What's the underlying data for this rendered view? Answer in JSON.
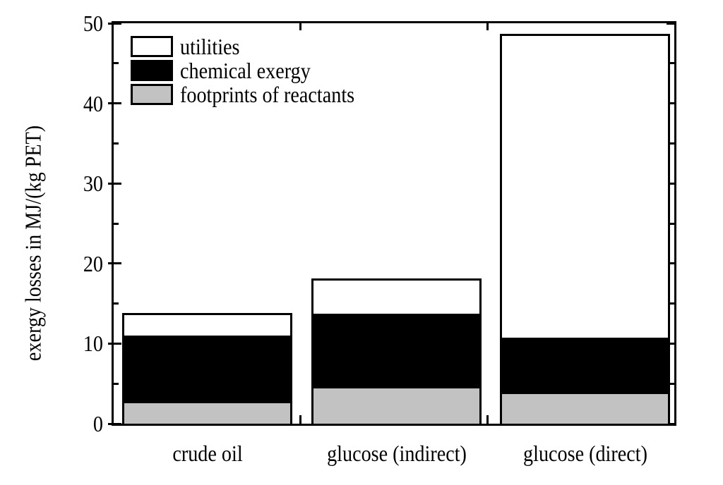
{
  "chart_data": {
    "type": "bar",
    "stacked": true,
    "title": "",
    "xlabel": "",
    "ylabel": "exergy losses in MJ/(kg PET)",
    "ylim": [
      0,
      50
    ],
    "ytick_major": [
      0,
      10,
      20,
      30,
      40,
      50
    ],
    "ytick_minor": [
      5,
      15,
      25,
      35,
      45
    ],
    "grid": false,
    "frame": true,
    "axis_color": "#000000",
    "categories": [
      "crude oil",
      "glucose (indirect)",
      "glucose (direct)"
    ],
    "series": [
      {
        "name": "footprints of reactants",
        "color": "#c2c2c2",
        "values": [
          2.6,
          4.4,
          3.7
        ]
      },
      {
        "name": "chemical exergy",
        "color": "#000000",
        "values": [
          8.4,
          9.3,
          7.0
        ]
      },
      {
        "name": "utilities",
        "color": "#ffffff",
        "values": [
          2.8,
          4.4,
          38.0
        ]
      }
    ],
    "stack_totals": [
      13.8,
      18.1,
      48.7
    ],
    "legend_position": "top-left-inside",
    "legend": [
      {
        "label": "utilities",
        "color": "#ffffff"
      },
      {
        "label": "chemical exergy",
        "color": "#000000"
      },
      {
        "label": "footprints of reactants",
        "color": "#c2c2c2"
      }
    ]
  }
}
